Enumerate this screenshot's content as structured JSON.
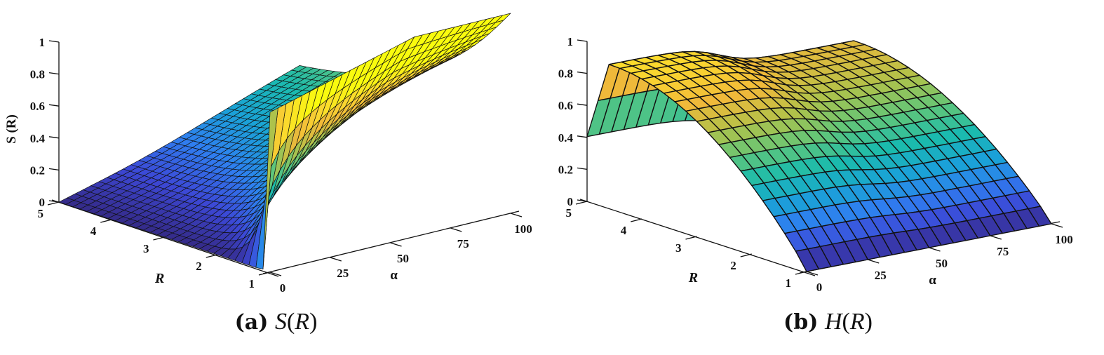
{
  "figure": {
    "panels": [
      {
        "id": "a",
        "caption_letter": "(a)",
        "caption_func": "S",
        "caption_arg": "R",
        "zlabel": "S (R)",
        "xlabel": "α",
        "ylabel": "R"
      },
      {
        "id": "b",
        "caption_letter": "(b)",
        "caption_func": "H",
        "caption_arg": "R",
        "zlabel": "H (R)",
        "xlabel": "α",
        "ylabel": "R"
      }
    ]
  },
  "chart_data": [
    {
      "type": "surface",
      "title": "(a) S(R)",
      "xlabel": "α",
      "ylabel": "R",
      "zlabel": "S (R)",
      "xlim": [
        0,
        100
      ],
      "ylim": [
        1,
        5
      ],
      "zlim": [
        0,
        1
      ],
      "xticks": [
        "0",
        "25",
        "50",
        "75",
        "100"
      ],
      "yticks": [
        "1",
        "2",
        "3",
        "4",
        "5"
      ],
      "zticks": [
        "0",
        "0.2",
        "0.4",
        "0.6",
        "0.8",
        "1"
      ],
      "colormap": "parula",
      "grid": {
        "nx": 30,
        "ny": 30
      },
      "description": "Survival-like surface: S≈1 at small α, decays toward 0 as R increases; at large α decays slowly to ~0.4 at R=5",
      "corner_values": {
        "alpha0_R1": 1.0,
        "alpha0_R5": 0.0,
        "alpha100_R1": 1.0,
        "alpha100_R5": 0.4
      }
    },
    {
      "type": "surface",
      "title": "(b) H(R)",
      "xlabel": "α",
      "ylabel": "R",
      "zlabel": "H (R)",
      "xlim": [
        0,
        100
      ],
      "ylim": [
        1,
        5
      ],
      "zlim": [
        0,
        1
      ],
      "xticks": [
        "0",
        "25",
        "50",
        "75",
        "100"
      ],
      "yticks": [
        "1",
        "2",
        "3",
        "4",
        "5"
      ],
      "zticks": [
        "0",
        "0.2",
        "0.4",
        "0.6",
        "0.8",
        "1"
      ],
      "colormap": "parula",
      "grid": {
        "nx": 20,
        "ny": 20
      },
      "description": "Hazard-like arch surface: H=0 at R=1 and rises to a ridge ~0.9 near R≈4.5, then drops at R=5; ridge lower (~0.75) for α>50",
      "ridge_peak": 0.9,
      "ridge_peak_high_alpha": 0.75
    }
  ],
  "colors": {
    "parula": [
      "#352a87",
      "#3c48d6",
      "#2f7ff0",
      "#1aa3d6",
      "#1bbbad",
      "#5fc67a",
      "#b0c24a",
      "#f0b93a",
      "#fbd82f",
      "#f9fb0e"
    ],
    "edge": "#111111",
    "axis": "#111111"
  }
}
